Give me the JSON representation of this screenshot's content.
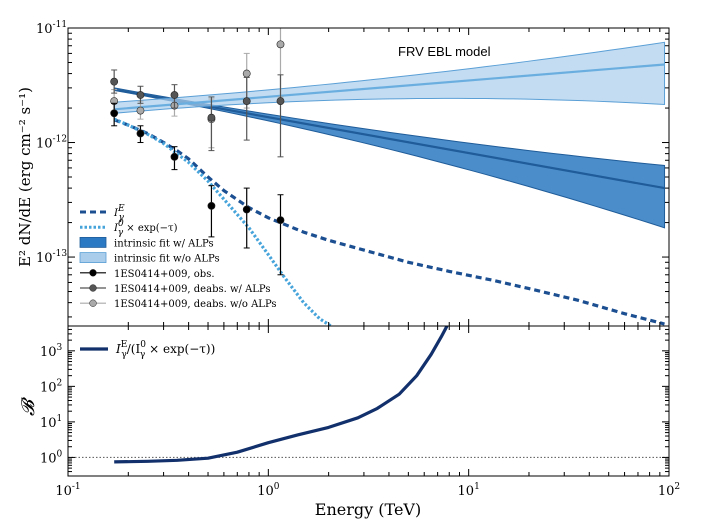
{
  "chart_data": [
    {
      "type": "scatter",
      "panel": "top",
      "xscale": "log",
      "yscale": "log",
      "xlim": [
        0.1,
        100
      ],
      "ylim": [
        2.5e-14,
        1e-11
      ],
      "ylabel": "E² dN/dE (erg cm⁻² s⁻¹)",
      "annotation": "FRV EBL model",
      "x_tick_labels": [
        "10",
        "10",
        "10",
        "10"
      ],
      "x_tick_exponents": [
        "-1",
        "0",
        "1",
        "2"
      ],
      "y_tick_labels": [
        "10",
        "10",
        "10"
      ],
      "y_tick_exponents": [
        "-13",
        "-12",
        "-11"
      ],
      "legend": [
        {
          "label": "I",
          "sup": "E",
          "sub": "γ",
          "suffix": "",
          "kind": "dashed"
        },
        {
          "label": "I",
          "sup": "0",
          "sub": "γ",
          "suffix": " × exp(−τ)",
          "kind": "dotdash"
        },
        {
          "label": "intrinsic fit w/ ALPs",
          "kind": "patch-dark"
        },
        {
          "label": "intrinsic fit w/o ALPs",
          "kind": "patch-light"
        },
        {
          "label": "1ES0414+009, obs.",
          "kind": "marker-black"
        },
        {
          "label": "1ES0414+009, deabs. w/ ALPs",
          "kind": "marker-gray"
        },
        {
          "label": "1ES0414+009, deabs. w/o ALPs",
          "kind": "marker-lightgray"
        }
      ],
      "series": [
        {
          "name": "1ES0414+009, obs.",
          "color": "#000000",
          "x": [
            0.17,
            0.23,
            0.34,
            0.52,
            0.78,
            1.15
          ],
          "y": [
            1.8e-12,
            1.2e-12,
            7.5e-13,
            2.8e-13,
            2.6e-13,
            2.1e-13
          ],
          "y_low": [
            1.4e-12,
            1e-12,
            5.8e-13,
            1.5e-13,
            1.2e-13,
            7e-14
          ],
          "y_high": [
            2.2e-12,
            1.4e-12,
            9.2e-13,
            4.2e-13,
            4e-13,
            3.5e-13
          ]
        },
        {
          "name": "1ES0414+009, deabs. w/ ALPs",
          "color": "#555555",
          "x": [
            0.17,
            0.23,
            0.34,
            0.52,
            0.78,
            1.15
          ],
          "y": [
            3.4e-12,
            2.6e-12,
            2.6e-12,
            1.65e-12,
            2.3e-12,
            2.3e-12
          ],
          "y_low": [
            2.7e-12,
            2.2e-12,
            2e-12,
            8.5e-13,
            1.05e-12,
            7.5e-13
          ],
          "y_high": [
            4.3e-12,
            3.1e-12,
            3.2e-12,
            2.5e-12,
            3.7e-12,
            3.9e-12
          ]
        },
        {
          "name": "1ES0414+009, deabs. w/o ALPs",
          "color": "#aaaaaa",
          "x": [
            0.17,
            0.23,
            0.34,
            0.52,
            0.78,
            1.15
          ],
          "y": [
            2.3e-12,
            1.9e-12,
            2.1e-12,
            1.6e-12,
            4e-12,
            7.2e-12
          ],
          "y_low": [
            1.8e-12,
            1.6e-12,
            1.7e-12,
            9e-13,
            2e-12,
            2.5e-12
          ],
          "y_high": [
            2.9e-12,
            2.3e-12,
            2.6e-12,
            2.4e-12,
            6e-12,
            1e-11
          ]
        }
      ],
      "bands": [
        {
          "name": "intrinsic fit w/ ALPs",
          "color": "#2b79c2",
          "edge": "#1f5c99",
          "x": [
            0.17,
            95
          ],
          "center": [
            2.9e-12,
            4e-13
          ],
          "upper": [
            3e-12,
            6.3e-13
          ],
          "lower": [
            2.85e-12,
            1.8e-13
          ]
        },
        {
          "name": "intrinsic fit w/o ALPs",
          "color": "#a9cdeb",
          "edge": "#5a9fd6",
          "x": [
            0.17,
            95
          ],
          "center": [
            1.95e-12,
            4.8e-12
          ],
          "upper": [
            2.25e-12,
            7.5e-12
          ],
          "lower": [
            1.8e-12,
            2.15e-12
          ]
        }
      ],
      "curves": [
        {
          "name": "I_gamma^E",
          "style": "dashed",
          "color": "#1b4f91",
          "x": [
            0.17,
            0.2,
            0.25,
            0.3,
            0.35,
            0.4,
            0.5,
            0.6,
            0.8,
            1.0,
            1.5,
            2.0,
            3.0,
            5.0,
            8.0,
            13.0,
            20.0,
            35.0,
            60.0,
            95.0
          ],
          "y": [
            1.58e-12,
            1.42e-12,
            1.2e-12,
            1e-12,
            8.5e-13,
            7.2e-13,
            5e-13,
            3.8e-13,
            2.7e-13,
            2.2e-13,
            1.65e-13,
            1.4e-13,
            1.15e-13,
            9e-14,
            7.5e-14,
            6.3e-14,
            5.3e-14,
            4.2e-14,
            3.2e-14,
            2.6e-14
          ]
        },
        {
          "name": "I_gamma^0 x exp(-tau)",
          "style": "dotdash",
          "color": "#47a4db",
          "x": [
            0.17,
            0.2,
            0.25,
            0.3,
            0.4,
            0.5,
            0.6,
            0.8,
            1.0,
            1.2,
            1.5,
            1.8,
            2.05
          ],
          "y": [
            1.6e-12,
            1.42e-12,
            1.18e-12,
            9.8e-13,
            6.7e-13,
            4.6e-13,
            3.2e-13,
            1.8e-13,
            1.05e-13,
            6.7e-14,
            4e-14,
            2.9e-14,
            2.5e-14
          ]
        }
      ]
    },
    {
      "type": "line",
      "panel": "bottom",
      "xscale": "log",
      "yscale": "log",
      "xlim": [
        0.1,
        100
      ],
      "ylim": [
        0.3,
        5000
      ],
      "xlabel": "Energy (TeV)",
      "ylabel": "𝓑",
      "reference_line": 1.0,
      "y_tick_labels": [
        "10",
        "10",
        "10",
        "10"
      ],
      "y_tick_exponents": [
        "0",
        "1",
        "2",
        "3"
      ],
      "legend": [
        {
          "label": "I",
          "sup": "E",
          "sub": "γ",
          "prefix": "",
          "suffix": "/(I",
          "sup2": "0",
          "sub2": "γ",
          "suffix2": " × exp(−τ))"
        }
      ],
      "series": [
        {
          "name": "I_gamma^E / (I_gamma^0 x exp(-tau))",
          "color": "#12306b",
          "x": [
            0.17,
            0.25,
            0.35,
            0.5,
            0.7,
            1.0,
            1.4,
            2.0,
            2.8,
            3.5,
            4.5,
            5.5,
            6.5,
            7.3,
            7.8
          ],
          "y": [
            0.75,
            0.78,
            0.83,
            0.95,
            1.4,
            2.6,
            4.3,
            7.0,
            13.0,
            24.0,
            60.0,
            200.0,
            800.0,
            2500.0,
            5000.0
          ]
        }
      ]
    }
  ]
}
